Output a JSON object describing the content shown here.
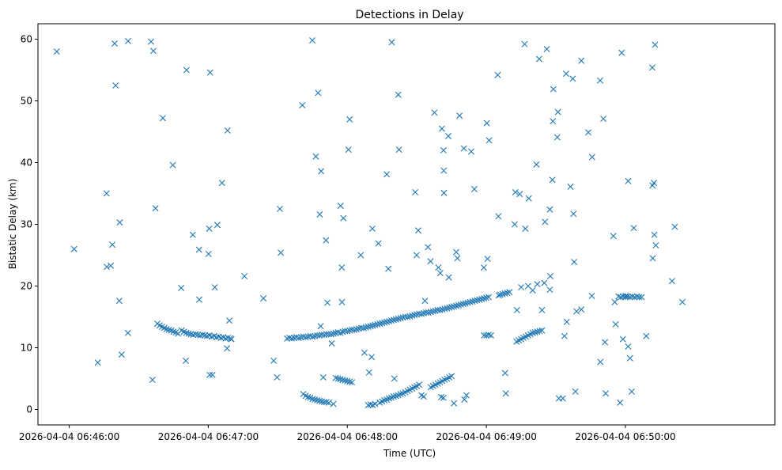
{
  "chart_data": {
    "type": "scatter",
    "title": "Detections in Delay",
    "xlabel": "Time (UTC)",
    "ylabel": "Bistatic Delay (km)",
    "marker": "x",
    "color": "#1f77b4",
    "grid": false,
    "x_unit": "seconds after 2026-04-04 06:46:00",
    "xlim": [
      -13.5,
      304.5
    ],
    "ylim": [
      -2.5,
      62.5
    ],
    "xticks": [
      {
        "value": 0,
        "label": "2026-04-04 06:46:00"
      },
      {
        "value": 60,
        "label": "2026-04-04 06:47:00"
      },
      {
        "value": 120,
        "label": "2026-04-04 06:48:00"
      },
      {
        "value": 180,
        "label": "2026-04-04 06:49:00"
      },
      {
        "value": 240,
        "label": "2026-04-04 06:50:00"
      }
    ],
    "yticks": [
      {
        "value": 0,
        "label": "0"
      },
      {
        "value": 10,
        "label": "10"
      },
      {
        "value": 20,
        "label": "20"
      },
      {
        "value": 30,
        "label": "30"
      },
      {
        "value": 40,
        "label": "40"
      },
      {
        "value": 50,
        "label": "50"
      },
      {
        "value": 60,
        "label": "60"
      }
    ],
    "points": [
      [
        -5.4,
        58.0
      ],
      [
        2.1,
        26.0
      ],
      [
        12.3,
        7.6
      ],
      [
        16.1,
        35.0
      ],
      [
        16.2,
        23.1
      ],
      [
        17.9,
        23.3
      ],
      [
        18.6,
        26.7
      ],
      [
        19.6,
        59.3
      ],
      [
        20.0,
        52.5
      ],
      [
        21.6,
        17.6
      ],
      [
        21.8,
        30.3
      ],
      [
        22.6,
        8.9
      ],
      [
        25.3,
        12.4
      ],
      [
        25.4,
        59.7
      ],
      [
        35.3,
        59.6
      ],
      [
        36.3,
        58.1
      ],
      [
        37.2,
        32.6
      ],
      [
        35.9,
        4.8
      ],
      [
        40.4,
        47.2
      ],
      [
        44.7,
        39.6
      ],
      [
        48.3,
        19.7
      ],
      [
        50.6,
        55.0
      ],
      [
        50.3,
        7.9
      ],
      [
        53.3,
        28.3
      ],
      [
        56.1,
        17.8
      ],
      [
        56.0,
        25.9
      ],
      [
        60.1,
        25.2
      ],
      [
        60.4,
        29.3
      ],
      [
        60.8,
        54.6
      ],
      [
        62.8,
        19.8
      ],
      [
        63.9,
        29.9
      ],
      [
        65.9,
        36.7
      ],
      [
        68.3,
        45.2
      ],
      [
        68.1,
        9.9
      ],
      [
        69.1,
        14.4
      ],
      [
        60.6,
        5.6
      ],
      [
        61.8,
        5.6
      ],
      [
        75.6,
        21.6
      ],
      [
        83.8,
        18.0
      ],
      [
        88.2,
        7.9
      ],
      [
        89.7,
        5.2
      ],
      [
        90.9,
        32.5
      ],
      [
        91.3,
        25.4
      ],
      [
        100.6,
        49.3
      ],
      [
        104.9,
        59.8
      ],
      [
        106.4,
        41.0
      ],
      [
        107.4,
        51.3
      ],
      [
        108.1,
        31.6
      ],
      [
        108.5,
        13.5
      ],
      [
        108.7,
        38.6
      ],
      [
        109.6,
        5.2
      ],
      [
        110.8,
        27.4
      ],
      [
        111.4,
        17.3
      ],
      [
        113.3,
        10.7
      ],
      [
        117.1,
        33.0
      ],
      [
        117.6,
        23.0
      ],
      [
        117.7,
        17.4
      ],
      [
        118.3,
        31.0
      ],
      [
        120.5,
        42.1
      ],
      [
        121.0,
        47.0
      ],
      [
        127.4,
        9.2
      ],
      [
        125.8,
        25.0
      ],
      [
        129.4,
        6.0
      ],
      [
        130.5,
        8.5
      ],
      [
        130.8,
        29.3
      ],
      [
        133.4,
        26.9
      ],
      [
        137.0,
        38.1
      ],
      [
        137.7,
        22.8
      ],
      [
        139.2,
        59.5
      ],
      [
        142.0,
        51.0
      ],
      [
        142.3,
        42.1
      ],
      [
        140.3,
        5.0
      ],
      [
        149.3,
        35.2
      ],
      [
        149.9,
        25.0
      ],
      [
        150.6,
        29.0
      ],
      [
        153.5,
        17.6
      ],
      [
        154.8,
        26.3
      ],
      [
        157.6,
        48.1
      ],
      [
        155.9,
        24.0
      ],
      [
        159.3,
        23.0
      ],
      [
        160.1,
        22.1
      ],
      [
        160.8,
        45.5
      ],
      [
        161.7,
        35.1
      ],
      [
        161.6,
        38.7
      ],
      [
        161.5,
        42.0
      ],
      [
        163.6,
        44.3
      ],
      [
        163.8,
        21.4
      ],
      [
        167.0,
        25.5
      ],
      [
        167.5,
        24.5
      ],
      [
        168.4,
        47.6
      ],
      [
        170.3,
        42.3
      ],
      [
        170.5,
        1.6
      ],
      [
        171.4,
        2.3
      ],
      [
        173.5,
        41.8
      ],
      [
        174.8,
        35.7
      ],
      [
        178.9,
        23.0
      ],
      [
        180.2,
        46.4
      ],
      [
        180.5,
        24.4
      ],
      [
        181.2,
        43.6
      ],
      [
        184.9,
        54.2
      ],
      [
        185.2,
        31.3
      ],
      [
        185.3,
        18.5
      ],
      [
        188.1,
        5.9
      ],
      [
        188.4,
        2.6
      ],
      [
        192.2,
        30.0
      ],
      [
        192.5,
        35.2
      ],
      [
        193.2,
        16.1
      ],
      [
        194.4,
        34.9
      ],
      [
        196.5,
        59.2
      ],
      [
        196.8,
        29.3
      ],
      [
        198.3,
        34.2
      ],
      [
        201.6,
        39.7
      ],
      [
        202.8,
        56.8
      ],
      [
        204.0,
        16.1
      ],
      [
        205.3,
        30.4
      ],
      [
        206.1,
        58.4
      ],
      [
        207.4,
        32.4
      ],
      [
        207.4,
        19.4
      ],
      [
        207.6,
        21.6
      ],
      [
        208.5,
        37.2
      ],
      [
        208.7,
        46.7
      ],
      [
        208.9,
        51.9
      ],
      [
        210.6,
        44.1
      ],
      [
        210.9,
        48.2
      ],
      [
        211.3,
        1.8
      ],
      [
        213.0,
        1.8
      ],
      [
        213.7,
        11.9
      ],
      [
        214.4,
        54.4
      ],
      [
        214.7,
        14.2
      ],
      [
        216.3,
        36.1
      ],
      [
        217.3,
        53.6
      ],
      [
        217.6,
        31.7
      ],
      [
        217.9,
        23.9
      ],
      [
        218.4,
        2.9
      ],
      [
        218.9,
        15.9
      ],
      [
        221.0,
        56.5
      ],
      [
        221.0,
        16.2
      ],
      [
        224.0,
        44.9
      ],
      [
        225.5,
        18.4
      ],
      [
        225.6,
        40.9
      ],
      [
        229.1,
        53.3
      ],
      [
        229.2,
        7.7
      ],
      [
        230.5,
        47.1
      ],
      [
        231.2,
        10.9
      ],
      [
        231.5,
        2.6
      ],
      [
        234.8,
        28.1
      ],
      [
        235.4,
        17.4
      ],
      [
        235.8,
        13.8
      ],
      [
        237.7,
        1.1
      ],
      [
        238.4,
        57.8
      ],
      [
        238.9,
        11.4
      ],
      [
        240.2,
        18.4
      ],
      [
        241.2,
        37.0
      ],
      [
        241.2,
        10.2
      ],
      [
        242.0,
        8.3
      ],
      [
        242.7,
        2.9
      ],
      [
        243.6,
        29.4
      ],
      [
        249.0,
        11.9
      ],
      [
        251.6,
        55.4
      ],
      [
        251.7,
        36.3
      ],
      [
        251.8,
        24.5
      ],
      [
        252.3,
        36.7
      ],
      [
        252.5,
        28.3
      ],
      [
        252.8,
        59.1
      ],
      [
        253.1,
        26.6
      ],
      [
        260.1,
        20.8
      ],
      [
        261.3,
        29.6
      ],
      [
        264.6,
        17.4
      ],
      [
        38.0,
        13.9
      ],
      [
        39.0,
        13.6
      ],
      [
        40.0,
        13.4
      ],
      [
        41.0,
        13.2
      ],
      [
        42.0,
        13.0
      ],
      [
        43.0,
        12.9
      ],
      [
        44.0,
        12.8
      ],
      [
        45.0,
        12.6
      ],
      [
        46.0,
        12.5
      ],
      [
        47.0,
        12.3
      ],
      [
        48.5,
        12.8
      ],
      [
        49.5,
        12.6
      ],
      [
        50.5,
        12.4
      ],
      [
        51.5,
        12.3
      ],
      [
        52.5,
        12.2
      ],
      [
        53.5,
        12.1
      ],
      [
        54.5,
        12.2
      ],
      [
        55.5,
        12.1
      ],
      [
        56.5,
        12.0
      ],
      [
        57.5,
        12.1
      ],
      [
        58.5,
        12.0
      ],
      [
        59.5,
        11.9
      ],
      [
        60.5,
        12.0
      ],
      [
        61.5,
        11.8
      ],
      [
        62.5,
        11.9
      ],
      [
        63.5,
        11.7
      ],
      [
        64.5,
        11.8
      ],
      [
        65.5,
        11.6
      ],
      [
        66.5,
        11.7
      ],
      [
        67.5,
        11.5
      ],
      [
        68.5,
        11.6
      ],
      [
        69.5,
        11.5
      ],
      [
        70.0,
        11.4
      ],
      [
        94.0,
        11.5
      ],
      [
        95.0,
        11.6
      ],
      [
        96.0,
        11.5
      ],
      [
        97.0,
        11.6
      ],
      [
        98.0,
        11.7
      ],
      [
        99.0,
        11.6
      ],
      [
        100.0,
        11.7
      ],
      [
        101.0,
        11.8
      ],
      [
        102.0,
        11.7
      ],
      [
        103.0,
        11.8
      ],
      [
        104.0,
        11.9
      ],
      [
        105.0,
        11.8
      ],
      [
        106.0,
        11.9
      ],
      [
        107.0,
        12.0
      ],
      [
        108.0,
        12.0
      ],
      [
        109.0,
        12.1
      ],
      [
        110.0,
        12.1
      ],
      [
        111.0,
        12.2
      ],
      [
        112.0,
        12.2
      ],
      [
        113.0,
        12.2
      ],
      [
        114.0,
        12.3
      ],
      [
        115.0,
        12.4
      ],
      [
        116.0,
        12.5
      ],
      [
        117.0,
        12.4
      ],
      [
        118.0,
        12.6
      ],
      [
        119.0,
        12.7
      ],
      [
        120.0,
        12.7
      ],
      [
        121.0,
        12.8
      ],
      [
        122.0,
        12.9
      ],
      [
        123.0,
        12.9
      ],
      [
        124.0,
        13.0
      ],
      [
        125.0,
        13.1
      ],
      [
        126.0,
        13.2
      ],
      [
        127.0,
        13.2
      ],
      [
        128.0,
        13.3
      ],
      [
        129.0,
        13.4
      ],
      [
        130.0,
        13.5
      ],
      [
        131.0,
        13.6
      ],
      [
        132.0,
        13.7
      ],
      [
        133.0,
        13.8
      ],
      [
        134.0,
        13.9
      ],
      [
        135.0,
        14.0
      ],
      [
        136.0,
        14.1
      ],
      [
        137.0,
        14.2
      ],
      [
        138.0,
        14.3
      ],
      [
        139.0,
        14.4
      ],
      [
        140.0,
        14.5
      ],
      [
        141.0,
        14.6
      ],
      [
        142.0,
        14.7
      ],
      [
        143.0,
        14.8
      ],
      [
        144.0,
        14.9
      ],
      [
        145.0,
        15.0
      ],
      [
        146.0,
        15.0
      ],
      [
        147.0,
        15.1
      ],
      [
        148.0,
        15.2
      ],
      [
        149.0,
        15.3
      ],
      [
        150.0,
        15.4
      ],
      [
        151.0,
        15.5
      ],
      [
        152.0,
        15.5
      ],
      [
        153.0,
        15.6
      ],
      [
        154.0,
        15.7
      ],
      [
        155.0,
        15.7
      ],
      [
        156.0,
        15.8
      ],
      [
        157.0,
        15.9
      ],
      [
        158.0,
        16.0
      ],
      [
        159.0,
        16.1
      ],
      [
        160.0,
        16.1
      ],
      [
        161.0,
        16.2
      ],
      [
        162.0,
        16.3
      ],
      [
        163.0,
        16.4
      ],
      [
        164.0,
        16.5
      ],
      [
        165.0,
        16.6
      ],
      [
        166.0,
        16.7
      ],
      [
        167.0,
        16.8
      ],
      [
        168.0,
        16.9
      ],
      [
        169.0,
        17.0
      ],
      [
        170.0,
        17.1
      ],
      [
        171.0,
        17.2
      ],
      [
        172.0,
        17.3
      ],
      [
        173.0,
        17.4
      ],
      [
        174.0,
        17.5
      ],
      [
        175.0,
        17.6
      ],
      [
        176.0,
        17.7
      ],
      [
        177.0,
        17.8
      ],
      [
        178.0,
        17.9
      ],
      [
        179.0,
        18.0
      ],
      [
        180.0,
        18.1
      ],
      [
        181.0,
        18.2
      ],
      [
        186.0,
        18.6
      ],
      [
        187.0,
        18.7
      ],
      [
        188.0,
        18.8
      ],
      [
        189.0,
        18.9
      ],
      [
        190.0,
        19.0
      ],
      [
        195.0,
        19.8
      ],
      [
        198.0,
        20.0
      ],
      [
        200.0,
        19.3
      ],
      [
        202.0,
        20.3
      ],
      [
        205.0,
        20.5
      ],
      [
        179.0,
        12.0
      ],
      [
        180.0,
        12.0
      ],
      [
        181.0,
        12.1
      ],
      [
        182.0,
        12.0
      ],
      [
        193.0,
        11.0
      ],
      [
        194.0,
        11.2
      ],
      [
        195.0,
        11.4
      ],
      [
        196.0,
        11.6
      ],
      [
        197.0,
        11.8
      ],
      [
        198.0,
        12.0
      ],
      [
        199.0,
        12.2
      ],
      [
        200.0,
        12.4
      ],
      [
        201.0,
        12.5
      ],
      [
        202.0,
        12.6
      ],
      [
        203.0,
        12.7
      ],
      [
        204.0,
        12.8
      ],
      [
        237.0,
        18.3
      ],
      [
        238.0,
        18.2
      ],
      [
        239.0,
        18.3
      ],
      [
        240.0,
        18.2
      ],
      [
        241.0,
        18.3
      ],
      [
        242.0,
        18.2
      ],
      [
        243.0,
        18.3
      ],
      [
        244.0,
        18.2
      ],
      [
        245.0,
        18.3
      ],
      [
        246.0,
        18.2
      ],
      [
        247.0,
        18.2
      ],
      [
        101.0,
        2.5
      ],
      [
        102.0,
        2.2
      ],
      [
        103.0,
        2.0
      ],
      [
        104.0,
        1.9
      ],
      [
        105.0,
        1.7
      ],
      [
        106.0,
        1.6
      ],
      [
        107.0,
        1.5
      ],
      [
        108.0,
        1.4
      ],
      [
        109.0,
        1.3
      ],
      [
        110.0,
        1.2
      ],
      [
        111.0,
        1.2
      ],
      [
        112.0,
        1.1
      ],
      [
        114.0,
        0.9
      ],
      [
        115.0,
        5.1
      ],
      [
        116.0,
        5.0
      ],
      [
        117.0,
        4.9
      ],
      [
        118.0,
        4.8
      ],
      [
        119.0,
        4.7
      ],
      [
        120.0,
        4.6
      ],
      [
        121.0,
        4.5
      ],
      [
        122.0,
        4.4
      ],
      [
        129.0,
        0.7
      ],
      [
        130.0,
        0.8
      ],
      [
        131.0,
        0.7
      ],
      [
        132.0,
        0.9
      ],
      [
        134.0,
        1.1
      ],
      [
        135.0,
        1.3
      ],
      [
        136.0,
        1.5
      ],
      [
        137.0,
        1.6
      ],
      [
        138.0,
        1.8
      ],
      [
        139.0,
        1.9
      ],
      [
        140.0,
        2.1
      ],
      [
        141.0,
        2.2
      ],
      [
        142.0,
        2.3
      ],
      [
        143.0,
        2.5
      ],
      [
        144.0,
        2.6
      ],
      [
        145.0,
        2.8
      ],
      [
        146.0,
        3.0
      ],
      [
        147.0,
        3.2
      ],
      [
        148.0,
        3.4
      ],
      [
        149.0,
        3.6
      ],
      [
        150.0,
        3.8
      ],
      [
        151.0,
        4.0
      ],
      [
        152.0,
        2.3
      ],
      [
        153.0,
        2.1
      ],
      [
        156.0,
        3.6
      ],
      [
        157.0,
        3.8
      ],
      [
        158.0,
        4.0
      ],
      [
        159.0,
        4.2
      ],
      [
        160.0,
        4.4
      ],
      [
        161.0,
        4.6
      ],
      [
        162.0,
        4.8
      ],
      [
        163.0,
        5.0
      ],
      [
        164.0,
        5.2
      ],
      [
        165.0,
        5.4
      ],
      [
        160.5,
        2.0
      ],
      [
        161.5,
        1.9
      ],
      [
        166.0,
        1.0
      ]
    ]
  }
}
